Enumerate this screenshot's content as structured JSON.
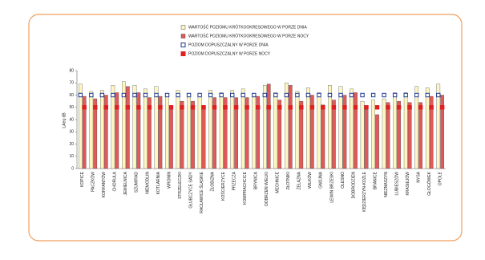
{
  "chart_data": {
    "type": "bar",
    "y_label": "LAeq dB",
    "categories": [
      "KOPICE",
      "PACZKÓW",
      "KORFANTÓW",
      "CHORULA",
      "JEMIELNICA",
      "SZUMIRAD",
      "NIEMODLIN",
      "KOTLARNIA",
      "WRONIN",
      "STRZELECZKI",
      "GŁUBCZYCE SADY",
      "RACŁAWICE ŚLĄSKIE",
      "ŻŁOBIZNA",
      "KOŚCIERZYCE",
      "PRZECZA",
      "KOMPRACHCICE",
      "BRYNICA",
      "DOBRZEŃ WIELKI",
      "MECHNICE",
      "ZŁOTNIKI",
      "ŻELAZNA",
      "WILKÓW",
      "GNOJNA",
      "LEWIN BRZESKI",
      "OLESNO",
      "DOBRODZIEŃ",
      "KĘDZIERZYN-KOŹLE",
      "BRANICE",
      "NIEZNASZYN",
      "LUBIESZÓW",
      "KRASIEJÓW",
      "NYSA",
      "GŁOGÓWEK",
      "OPOLE"
    ],
    "series": [
      {
        "name": "WARTOŚĆ POZIOMU KRÓTKOOKRESOWEGO W PORZE DNIA",
        "kind": "bar",
        "color": "#fdf6c3",
        "values": [
          69,
          63,
          64,
          68,
          71,
          68,
          65,
          67,
          59,
          64,
          60,
          60,
          64,
          62,
          64,
          65,
          61,
          68,
          62,
          70,
          63,
          66,
          62,
          68,
          67,
          65,
          55,
          56,
          57,
          62,
          62,
          67,
          66,
          69
        ]
      },
      {
        "name": "WARTOŚĆ POZIOMU KRÓTKOOKRESOWEGO W PORZE NOCY",
        "kind": "bar",
        "color": "#e05a5a",
        "values": [
          59,
          57,
          60,
          62,
          67,
          62,
          58,
          59,
          50,
          55,
          55,
          51,
          58,
          58,
          58,
          58,
          59,
          69,
          56,
          68,
          55,
          60,
          52,
          56,
          60,
          62,
          48,
          44,
          54,
          55,
          54,
          54,
          59,
          60
        ]
      },
      {
        "name": "POZIOM DOPUSZCZALNY W PORZE DNIA",
        "kind": "marker",
        "color": "#1f3a93",
        "values": [
          60,
          60,
          60,
          60,
          60,
          60,
          60,
          60,
          60,
          60,
          60,
          60,
          60,
          60,
          60,
          60,
          60,
          60,
          60,
          60,
          60,
          60,
          60,
          60,
          60,
          60,
          60,
          60,
          60,
          60,
          60,
          60,
          60,
          60
        ]
      },
      {
        "name": "POZIOM DOPUSZCZALNY W PORZE NOCY",
        "kind": "marker",
        "color": "#e02020",
        "values": [
          50,
          50,
          50,
          50,
          50,
          50,
          50,
          50,
          50,
          50,
          50,
          50,
          50,
          50,
          50,
          50,
          50,
          50,
          50,
          50,
          50,
          50,
          50,
          50,
          50,
          50,
          50,
          50,
          50,
          50,
          50,
          50,
          50,
          50
        ]
      }
    ],
    "ylim": [
      0,
      80
    ],
    "yticks": [
      0,
      10,
      20,
      30,
      40,
      50,
      60,
      70,
      80
    ],
    "grid": false
  }
}
